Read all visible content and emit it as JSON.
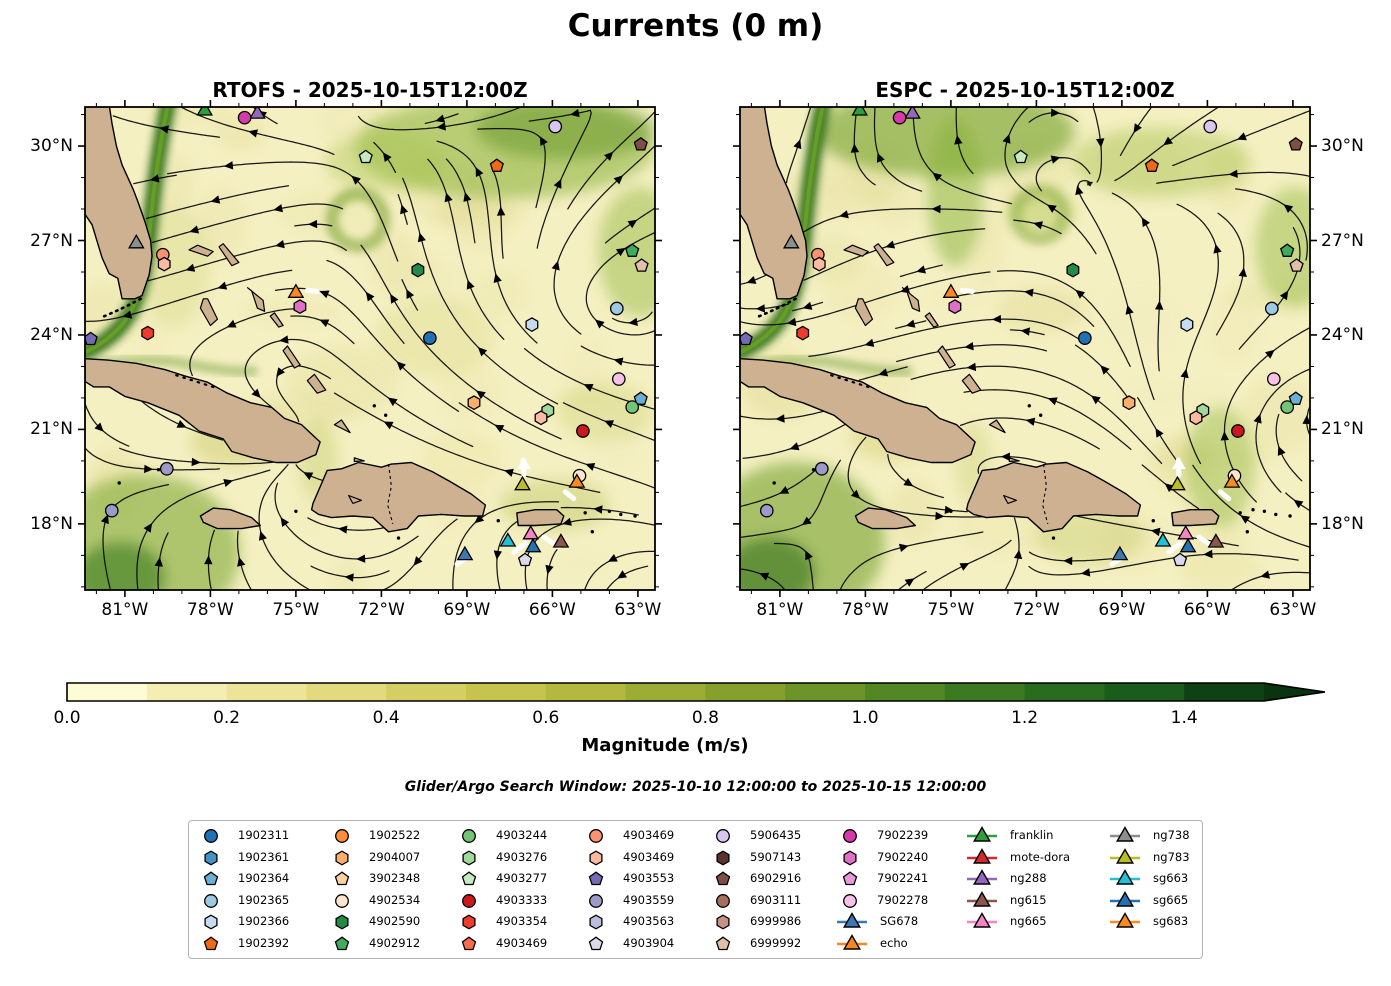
{
  "title": "Currents (0 m)",
  "panels": [
    {
      "id": "rtofs",
      "title": "RTOFS - 2025-10-15T12:00Z"
    },
    {
      "id": "espc",
      "title": "ESPC - 2025-10-15T12:00Z"
    }
  ],
  "axes": {
    "lon_tick_labels": [
      "81°W",
      "78°W",
      "75°W",
      "72°W",
      "69°W",
      "66°W",
      "63°W"
    ],
    "lon_tick_values": [
      -81,
      -78,
      -75,
      -72,
      -69,
      -66,
      -63
    ],
    "lat_tick_labels": [
      "30°N",
      "27°N",
      "24°N",
      "21°N",
      "18°N"
    ],
    "lat_tick_values": [
      30,
      27,
      24,
      21,
      18
    ],
    "lon_range": [
      -82.4,
      -62.4
    ],
    "lat_range": [
      15.9,
      31.24
    ]
  },
  "colorbar": {
    "label": "Magnitude (m/s)",
    "tick_labels": [
      "0.0",
      "0.2",
      "0.4",
      "0.6",
      "0.8",
      "1.0",
      "1.2",
      "1.4"
    ],
    "tick_values": [
      0.0,
      0.2,
      0.4,
      0.6,
      0.8,
      1.0,
      1.2,
      1.4
    ],
    "range": [
      0.0,
      1.5
    ],
    "extend_max": true,
    "colors": [
      "#fdfcd4",
      "#f4eeb2",
      "#ece496",
      "#e2da7d",
      "#d5cf63",
      "#c6c44f",
      "#b3b83f",
      "#9dad34",
      "#85a02c",
      "#6c9428",
      "#538724",
      "#3c7a21",
      "#286c1e",
      "#195c1b",
      "#0e4114"
    ],
    "arrow_color": "#0a3310"
  },
  "search_window": "Glider/Argo Search Window: 2025-10-10 12:00:00 to 2025-10-15 12:00:00",
  "map_colors": {
    "ocean": "#f5f0c2",
    "land": "#cdb191",
    "coastline": "#000000",
    "streamline": "#0b0b0b",
    "gulf_stream_core": "#2a661a"
  },
  "legend": {
    "columns": [
      [
        {
          "id": "1902311",
          "shape": "circle",
          "color": "#2171b5",
          "type": "float"
        },
        {
          "id": "1902361",
          "shape": "hexagon",
          "color": "#4292c6",
          "type": "float"
        },
        {
          "id": "1902364",
          "shape": "pentagon",
          "color": "#6baed6",
          "type": "float"
        },
        {
          "id": "1902365",
          "shape": "circle",
          "color": "#9ecae1",
          "type": "float"
        },
        {
          "id": "1902366",
          "shape": "hexagon",
          "color": "#c6dbef",
          "type": "float"
        },
        {
          "id": "1902392",
          "shape": "pentagon",
          "color": "#f16913",
          "type": "float"
        }
      ],
      [
        {
          "id": "1902522",
          "shape": "circle",
          "color": "#fd8d3c",
          "type": "float"
        },
        {
          "id": "2904007",
          "shape": "hexagon",
          "color": "#fdae6b",
          "type": "float"
        },
        {
          "id": "3902348",
          "shape": "pentagon",
          "color": "#fdd0a2",
          "type": "float"
        },
        {
          "id": "4902534",
          "shape": "circle",
          "color": "#fee6ce",
          "type": "float"
        },
        {
          "id": "4902590",
          "shape": "hexagon",
          "color": "#238b45",
          "type": "float"
        },
        {
          "id": "4902912",
          "shape": "pentagon",
          "color": "#41ab5d",
          "type": "float"
        }
      ],
      [
        {
          "id": "4903244",
          "shape": "circle",
          "color": "#74c476",
          "type": "float"
        },
        {
          "id": "4903276",
          "shape": "hexagon",
          "color": "#a1d99b",
          "type": "float"
        },
        {
          "id": "4903277",
          "shape": "pentagon",
          "color": "#c7e9c0",
          "type": "float"
        },
        {
          "id": "4903333",
          "shape": "circle",
          "color": "#cb181d",
          "type": "float"
        },
        {
          "id": "4903354",
          "shape": "hexagon",
          "color": "#ef3b2c",
          "type": "float"
        },
        {
          "id": "4903469",
          "shape": "pentagon",
          "color": "#fb6a4a",
          "type": "float"
        }
      ],
      [
        {
          "id": "4903469",
          "shape": "circle",
          "color": "#fc9272",
          "type": "float"
        },
        {
          "id": "4903469",
          "shape": "hexagon",
          "color": "#fcbba1",
          "type": "float"
        },
        {
          "id": "4903553",
          "shape": "pentagon",
          "color": "#756bb1",
          "type": "float"
        },
        {
          "id": "4903559",
          "shape": "circle",
          "color": "#9e9ac8",
          "type": "float"
        },
        {
          "id": "4903563",
          "shape": "hexagon",
          "color": "#bcbddc",
          "type": "float"
        },
        {
          "id": "4903904",
          "shape": "pentagon",
          "color": "#dadaeb",
          "type": "float"
        }
      ],
      [
        {
          "id": "5906435",
          "shape": "circle",
          "color": "#d9c6f0",
          "type": "float"
        },
        {
          "id": "5907143",
          "shape": "hexagon",
          "color": "#59332c",
          "type": "float"
        },
        {
          "id": "6902916",
          "shape": "pentagon",
          "color": "#7f4f43",
          "type": "float"
        },
        {
          "id": "6903111",
          "shape": "circle",
          "color": "#a5705f",
          "type": "float"
        },
        {
          "id": "6999986",
          "shape": "hexagon",
          "color": "#c49384",
          "type": "float"
        },
        {
          "id": "6999992",
          "shape": "pentagon",
          "color": "#e2bfa7",
          "type": "float"
        }
      ],
      [
        {
          "id": "7902239",
          "shape": "circle",
          "color": "#d43aa8",
          "type": "float"
        },
        {
          "id": "7902240",
          "shape": "hexagon",
          "color": "#de70c8",
          "type": "float"
        },
        {
          "id": "7902241",
          "shape": "pentagon",
          "color": "#ea9ad8",
          "type": "float"
        },
        {
          "id": "7902278",
          "shape": "circle",
          "color": "#f8c1e8",
          "type": "float"
        },
        {
          "id": "SG678",
          "shape": "triangle",
          "color": "#3a78b5",
          "type": "glider"
        },
        {
          "id": "echo",
          "shape": "triangle",
          "color": "#fb8723",
          "type": "glider"
        }
      ],
      [
        {
          "id": "franklin",
          "shape": "triangle",
          "color": "#2f9e3f",
          "type": "glider"
        },
        {
          "id": "mote-dora",
          "shape": "triangle",
          "color": "#d42a2c",
          "type": "glider"
        },
        {
          "id": "ng288",
          "shape": "triangle",
          "color": "#9467bd",
          "type": "glider"
        },
        {
          "id": "ng615",
          "shape": "triangle",
          "color": "#8c564b",
          "type": "glider"
        },
        {
          "id": "ng665",
          "shape": "triangle",
          "color": "#f584c6",
          "type": "glider"
        }
      ],
      [
        {
          "id": "ng738",
          "shape": "triangle",
          "color": "#8e8e8e",
          "type": "glider"
        },
        {
          "id": "ng783",
          "shape": "triangle",
          "color": "#bcbd22",
          "type": "glider"
        },
        {
          "id": "sg663",
          "shape": "triangle",
          "color": "#1fc2d7",
          "type": "glider"
        },
        {
          "id": "sg665",
          "shape": "triangle",
          "color": "#2272b5",
          "type": "glider"
        },
        {
          "id": "sg683",
          "shape": "triangle",
          "color": "#fb8b1e",
          "type": "glider"
        }
      ]
    ]
  },
  "markers": [
    {
      "id": "franklin",
      "shape": "triangle",
      "color": "#2f9e3f",
      "lon": -78.2,
      "lat": 31.12
    },
    {
      "id": "ng288",
      "shape": "triangle",
      "color": "#9467bd",
      "lon": -76.35,
      "lat": 31.02
    },
    {
      "id": "7902239",
      "shape": "circle",
      "color": "#d43aa8",
      "lon": -76.8,
      "lat": 30.9
    },
    {
      "id": "5906435",
      "shape": "circle",
      "color": "#d9c6f0",
      "lon": -65.9,
      "lat": 30.62
    },
    {
      "id": "6902916",
      "shape": "pentagon",
      "color": "#7f4f43",
      "lon": -62.9,
      "lat": 30.05
    },
    {
      "id": "4903277",
      "shape": "pentagon",
      "color": "#c7e9c0",
      "lon": -72.55,
      "lat": 29.65
    },
    {
      "id": "1902392",
      "shape": "pentagon",
      "color": "#f16913",
      "lon": -67.95,
      "lat": 29.37
    },
    {
      "id": "ng738",
      "shape": "triangle",
      "color": "#8e8e8e",
      "lon": -80.6,
      "lat": 26.9
    },
    {
      "id": "4903469",
      "shape": "circle",
      "color": "#fc9272",
      "lon": -79.67,
      "lat": 26.55
    },
    {
      "id": "4903469",
      "shape": "hexagon",
      "color": "#fcbba1",
      "lon": -79.62,
      "lat": 26.25
    },
    {
      "id": "4902912",
      "shape": "pentagon",
      "color": "#41ab5d",
      "lon": -63.2,
      "lat": 26.67
    },
    {
      "id": "6999992",
      "shape": "pentagon",
      "color": "#e2bfa7",
      "lon": -62.87,
      "lat": 26.2
    },
    {
      "id": "4902590",
      "shape": "hexagon",
      "color": "#238b45",
      "lon": -70.72,
      "lat": 26.06
    },
    {
      "id": "echo",
      "shape": "triangle",
      "color": "#fb8723",
      "lon": -75.0,
      "lat": 25.33
    },
    {
      "id": "7902240",
      "shape": "hexagon",
      "color": "#de70c8",
      "lon": -74.86,
      "lat": 24.9
    },
    {
      "id": "4903354",
      "shape": "hexagon",
      "color": "#ef3b2c",
      "lon": -80.2,
      "lat": 24.06
    },
    {
      "id": "4903553",
      "shape": "pentagon",
      "color": "#756bb1",
      "lon": -82.2,
      "lat": 23.87
    },
    {
      "id": "1902311",
      "shape": "circle",
      "color": "#2171b5",
      "lon": -70.3,
      "lat": 23.9
    },
    {
      "id": "1902366",
      "shape": "hexagon",
      "color": "#c6dbef",
      "lon": -66.72,
      "lat": 24.33
    },
    {
      "id": "1902365",
      "shape": "circle",
      "color": "#9ecae1",
      "lon": -63.74,
      "lat": 24.84
    },
    {
      "id": "7902278",
      "shape": "circle",
      "color": "#f8c1e8",
      "lon": -63.67,
      "lat": 22.6
    },
    {
      "id": "1902364",
      "shape": "pentagon",
      "color": "#6baed6",
      "lon": -62.9,
      "lat": 21.97
    },
    {
      "id": "4903244",
      "shape": "circle",
      "color": "#74c476",
      "lon": -63.2,
      "lat": 21.71
    },
    {
      "id": "4903276",
      "shape": "hexagon",
      "color": "#a1d99b",
      "lon": -66.16,
      "lat": 21.6
    },
    {
      "id": "4903469",
      "shape": "hexagon",
      "color": "#fcbba1",
      "lon": -66.4,
      "lat": 21.37
    },
    {
      "id": "2904007",
      "shape": "hexagon",
      "color": "#fdae6b",
      "lon": -68.75,
      "lat": 21.85
    },
    {
      "id": "4903333",
      "shape": "circle",
      "color": "#cb181d",
      "lon": -64.93,
      "lat": 20.95
    },
    {
      "id": "4903559",
      "shape": "circle",
      "color": "#9e9ac8",
      "lon": -79.53,
      "lat": 19.75
    },
    {
      "id": "4903559",
      "shape": "circle",
      "color": "#9e9ac8",
      "lon": -81.46,
      "lat": 18.42
    },
    {
      "id": "ng783",
      "shape": "triangle",
      "color": "#bcbd22",
      "lon": -67.05,
      "lat": 19.22
    },
    {
      "id": "4902534",
      "shape": "circle",
      "color": "#fee6ce",
      "lon": -65.05,
      "lat": 19.53
    },
    {
      "id": "sg683",
      "shape": "triangle",
      "color": "#fb8b1e",
      "lon": -65.14,
      "lat": 19.3
    },
    {
      "id": "sg663",
      "shape": "triangle",
      "color": "#1fc2d7",
      "lon": -67.56,
      "lat": 17.43
    },
    {
      "id": "ng665",
      "shape": "triangle",
      "color": "#f584c6",
      "lon": -66.76,
      "lat": 17.66
    },
    {
      "id": "sg665",
      "shape": "triangle",
      "color": "#2272b5",
      "lon": -66.68,
      "lat": 17.25
    },
    {
      "id": "ng615",
      "shape": "triangle",
      "color": "#8c564b",
      "lon": -65.7,
      "lat": 17.4
    },
    {
      "id": "SG678",
      "shape": "triangle",
      "color": "#3a78b5",
      "lon": -69.07,
      "lat": 17.0
    },
    {
      "id": "4903904",
      "shape": "pentagon",
      "color": "#dadaeb",
      "lon": -66.96,
      "lat": 16.85
    }
  ],
  "glider_tracks_white": [
    [
      -67.02,
      20.02,
      -67.0,
      19.55
    ],
    [
      -74.6,
      25.42,
      -74.25,
      25.38
    ],
    [
      -67.35,
      17.1,
      -66.95,
      17.38
    ],
    [
      -66.3,
      17.58,
      -65.8,
      17.28
    ],
    [
      -69.35,
      16.72,
      -68.95,
      16.95
    ],
    [
      -65.55,
      19.02,
      -65.25,
      18.8
    ]
  ],
  "chart_data": {
    "type": "heatmap",
    "title": "Currents (0 m)",
    "subplots": [
      "RTOFS - 2025-10-15T12:00Z",
      "ESPC - 2025-10-15T12:00Z"
    ],
    "field": "sea surface current magnitude with streamlines",
    "x": {
      "label": "longitude",
      "ticks": [
        "81°W",
        "78°W",
        "75°W",
        "72°W",
        "69°W",
        "66°W",
        "63°W"
      ],
      "range": [
        -82.4,
        -62.4
      ]
    },
    "y": {
      "label": "latitude",
      "ticks": [
        "30°N",
        "27°N",
        "24°N",
        "21°N",
        "18°N"
      ],
      "range": [
        15.9,
        31.24
      ]
    },
    "colorbar": {
      "label": "Magnitude (m/s)",
      "ticks": [
        0.0,
        0.2,
        0.4,
        0.6,
        0.8,
        1.0,
        1.2,
        1.4
      ],
      "range": [
        0.0,
        1.5
      ],
      "extended_above": true
    },
    "legend_position": "bottom",
    "grid": false,
    "annotation": "Glider/Argo Search Window: 2025-10-10 12:00:00 to 2025-10-15 12:00:00"
  }
}
